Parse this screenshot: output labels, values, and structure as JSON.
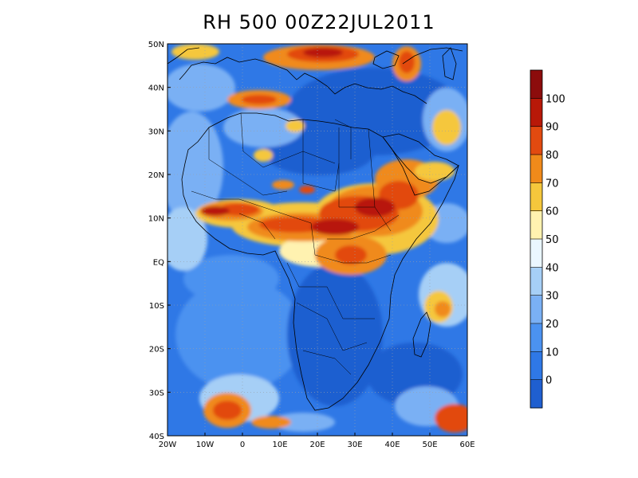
{
  "title": "RH 500 00Z22JUL2011",
  "map": {
    "lat_labels": [
      "50N",
      "40N",
      "30N",
      "20N",
      "10N",
      "EQ",
      "10S",
      "20S",
      "30S",
      "40S"
    ],
    "lon_labels": [
      "20W",
      "10W",
      "0",
      "10E",
      "20E",
      "30E",
      "40E",
      "50E",
      "60E"
    ],
    "lon_range": [
      -20,
      60
    ],
    "lat_range": [
      -40,
      50
    ],
    "field": "relative humidity, 500 hPa"
  },
  "colorbar": {
    "labels": [
      "0",
      "10",
      "20",
      "30",
      "40",
      "50",
      "60",
      "70",
      "80",
      "90",
      "100"
    ],
    "colors": [
      "#1f5fd0",
      "#2f78e6",
      "#4b92f0",
      "#7ab0f4",
      "#a6cff6",
      "#eaf6ff",
      "#fff2b0",
      "#f5c73c",
      "#f08a1a",
      "#e24a10",
      "#b81808",
      "#8c0c0c"
    ]
  },
  "colors": {
    "gridline": "#9aa0a8",
    "coast": "#000000"
  }
}
